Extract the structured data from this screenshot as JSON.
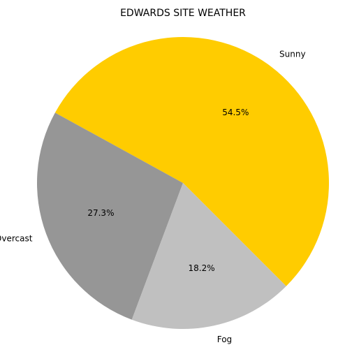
{
  "chart_data": {
    "type": "pie",
    "title": "EDWARDS SITE WEATHER",
    "slices": [
      {
        "label": "Sunny",
        "value": 54.5,
        "pct_label": "54.5%",
        "color": "#FFCC00"
      },
      {
        "label": "Overcast",
        "value": 27.3,
        "pct_label": "27.3%",
        "color": "#969696"
      },
      {
        "label": "Fog",
        "value": 18.2,
        "pct_label": "18.2%",
        "color": "#C0C0C0"
      }
    ]
  }
}
